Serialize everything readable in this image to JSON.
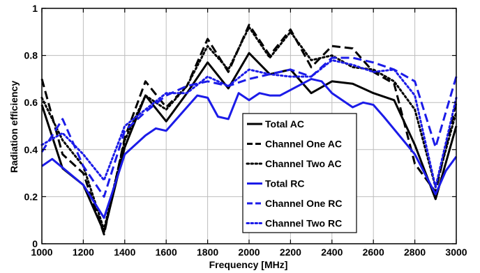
{
  "chart_data": {
    "type": "line",
    "title": "",
    "xlabel": "Frequency [MHz]",
    "ylabel": "Radiation efficiency",
    "xlim": [
      1000,
      3000
    ],
    "ylim": [
      0,
      1
    ],
    "xticks": [
      1000,
      1200,
      1400,
      1600,
      1800,
      2000,
      2200,
      2400,
      2600,
      2800,
      3000
    ],
    "yticks": [
      0,
      0.2,
      0.4,
      0.6,
      0.8,
      1
    ],
    "xtick_labels": [
      "1000",
      "1200",
      "1400",
      "1600",
      "1800",
      "2000",
      "2200",
      "2400",
      "2600",
      "2800",
      "3000"
    ],
    "ytick_labels": [
      "0",
      "0.2",
      "0.4",
      "0.6",
      "0.8",
      "1"
    ],
    "grid": true,
    "legend_position": "lower-center",
    "x": [
      1000,
      1100,
      1200,
      1300,
      1400,
      1500,
      1600,
      1700,
      1800,
      1900,
      2000,
      2100,
      2200,
      2300,
      2400,
      2500,
      2600,
      2700,
      2800,
      2900,
      3000
    ],
    "series": [
      {
        "name": "Total AC",
        "color": "#000000",
        "style": "solid",
        "values": [
          0.59,
          0.32,
          0.25,
          0.05,
          0.41,
          0.63,
          0.52,
          0.64,
          0.77,
          0.66,
          0.81,
          0.72,
          0.74,
          0.64,
          0.69,
          0.68,
          0.64,
          0.61,
          0.42,
          0.19,
          0.5
        ]
      },
      {
        "name": "Channel One AC",
        "color": "#000000",
        "style": "dashed",
        "values": [
          0.7,
          0.38,
          0.3,
          0.04,
          0.45,
          0.69,
          0.58,
          0.67,
          0.87,
          0.73,
          0.93,
          0.8,
          0.91,
          0.75,
          0.84,
          0.83,
          0.73,
          0.68,
          0.34,
          0.22,
          0.6
        ]
      },
      {
        "name": "Channel Two AC",
        "color": "#000000",
        "style": "dotted",
        "values": [
          0.62,
          0.44,
          0.33,
          0.06,
          0.44,
          0.63,
          0.57,
          0.67,
          0.84,
          0.74,
          0.92,
          0.79,
          0.9,
          0.78,
          0.8,
          0.75,
          0.74,
          0.69,
          0.57,
          0.24,
          0.56
        ]
      },
      {
        "name": "Total RC",
        "color": "#1b1be8",
        "style": "solid",
        "values": [
          0.33,
          0.36,
          0.25,
          0.11,
          0.38,
          0.46,
          0.49,
          0.48,
          0.58,
          0.63,
          0.62,
          0.54,
          0.53,
          0.64,
          0.61,
          0.64,
          0.63,
          0.63,
          0.7,
          0.69,
          0.64,
          0.58,
          0.6,
          0.59,
          0.54,
          0.38,
          0.21,
          0.31,
          0.37
        ],
        "x": [
          1000,
          1050,
          1200,
          1300,
          1400,
          1500,
          1550,
          1600,
          1700,
          1750,
          1800,
          1850,
          1900,
          1950,
          2000,
          2050,
          2100,
          2150,
          2300,
          2350,
          2400,
          2500,
          2550,
          2600,
          2650,
          2800,
          2900,
          2950,
          3000
        ]
      },
      {
        "name": "Channel One RC",
        "color": "#1b1be8",
        "style": "dashed",
        "values": [
          0.39,
          0.53,
          0.33,
          0.2,
          0.48,
          0.56,
          0.63,
          0.67,
          0.69,
          0.67,
          0.7,
          0.72,
          0.74,
          0.71,
          0.79,
          0.79,
          0.77,
          0.74,
          0.69,
          0.41,
          0.71
        ],
        "x": [
          1000,
          1100,
          1200,
          1300,
          1400,
          1500,
          1600,
          1700,
          1800,
          1900,
          2000,
          2100,
          2200,
          2300,
          2400,
          2500,
          2600,
          2700,
          2800,
          2900,
          3000
        ]
      },
      {
        "name": "Channel Two RC",
        "color": "#1b1be8",
        "style": "dotted",
        "values": [
          0.42,
          0.47,
          0.38,
          0.27,
          0.5,
          0.57,
          0.64,
          0.64,
          0.71,
          0.67,
          0.74,
          0.72,
          0.71,
          0.71,
          0.78,
          0.76,
          0.73,
          0.74,
          0.63,
          0.24,
          0.62
        ],
        "x": [
          1000,
          1100,
          1200,
          1300,
          1400,
          1500,
          1600,
          1700,
          1800,
          1900,
          2000,
          2100,
          2200,
          2300,
          2400,
          2500,
          2600,
          2700,
          2800,
          2900,
          3000
        ]
      }
    ]
  }
}
